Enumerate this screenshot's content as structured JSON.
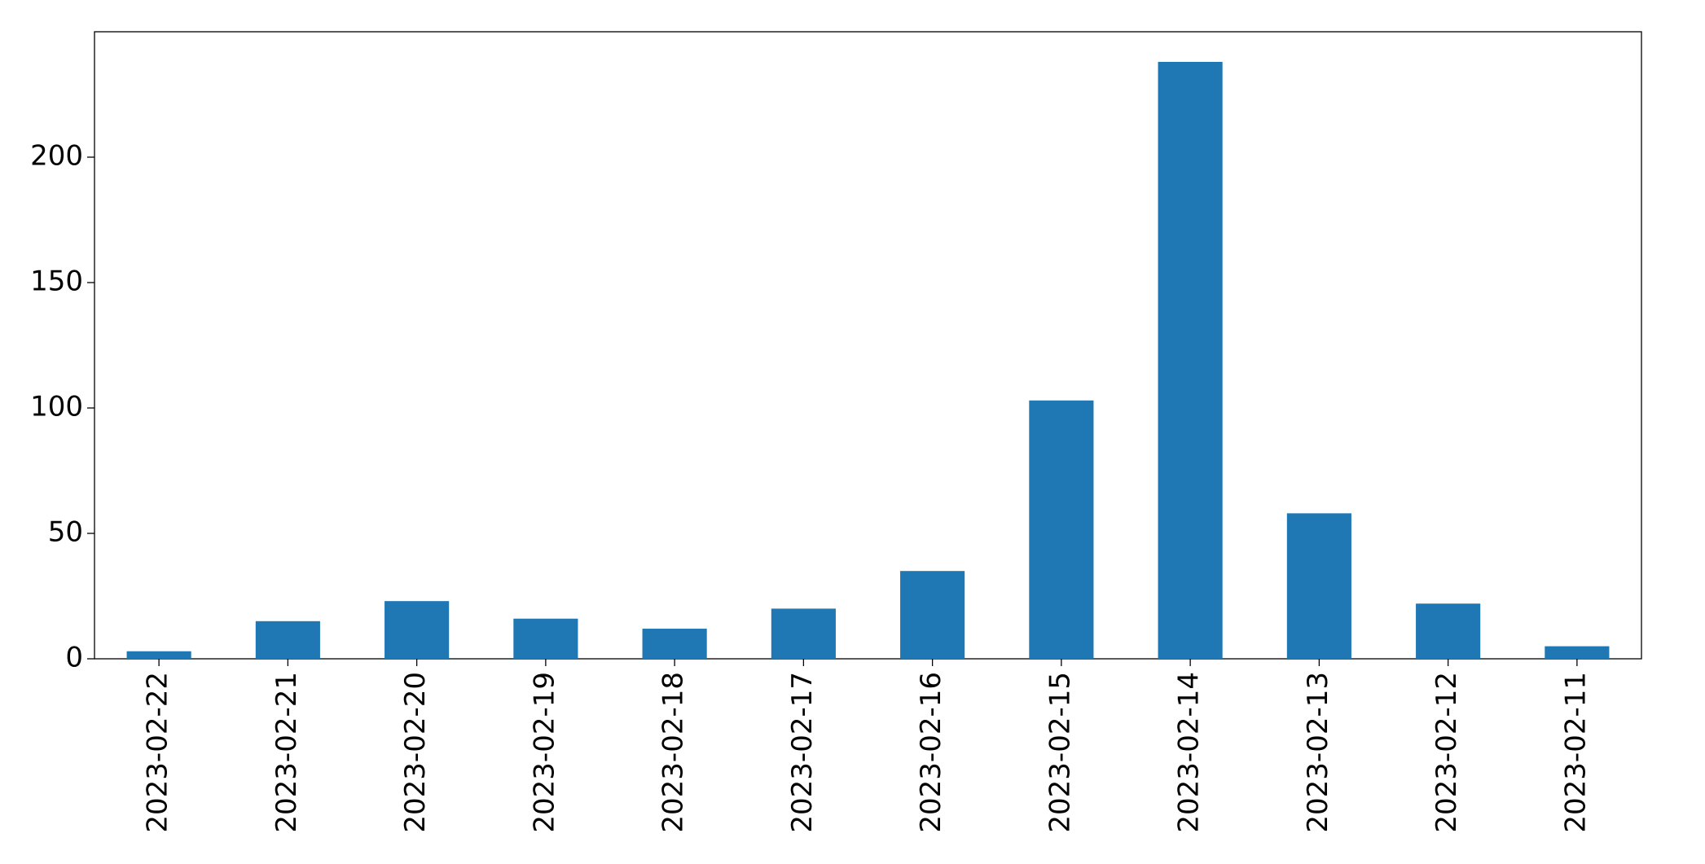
{
  "chart_data": {
    "type": "bar",
    "categories": [
      "2023-02-22",
      "2023-02-21",
      "2023-02-20",
      "2023-02-19",
      "2023-02-18",
      "2023-02-17",
      "2023-02-16",
      "2023-02-15",
      "2023-02-14",
      "2023-02-13",
      "2023-02-12",
      "2023-02-11"
    ],
    "values": [
      3,
      15,
      23,
      16,
      12,
      20,
      35,
      103,
      238,
      58,
      22,
      5
    ],
    "color": "#1f77b4",
    "ylim": [
      0,
      250
    ],
    "yticks": [
      0,
      50,
      100,
      150,
      200
    ],
    "grid": false
  }
}
